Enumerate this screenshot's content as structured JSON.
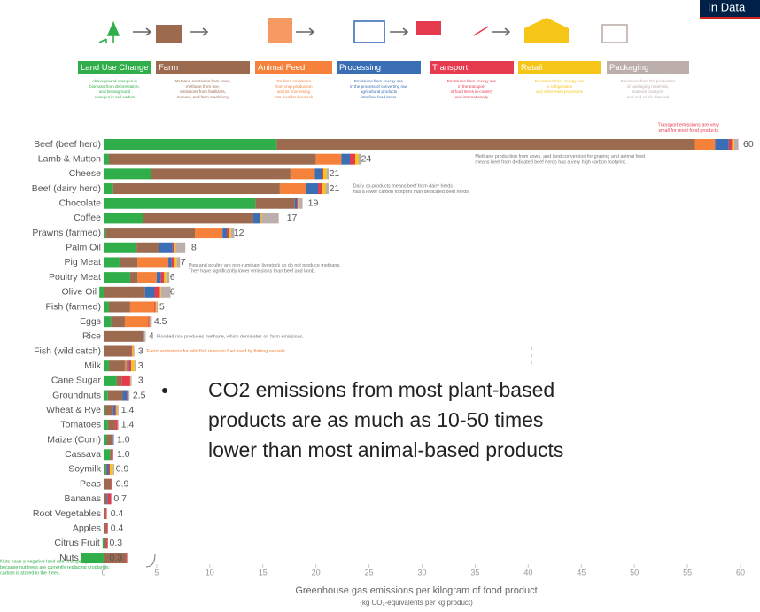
{
  "logo": "in Data",
  "chart_data": {
    "type": "stacked-bar-horizontal",
    "x_label": "Greenhouse gas emissions per kilogram of food product",
    "x_sublabel": "(kg CO₂-equivalents per kg product)",
    "xlim": [
      -2.5,
      61.5
    ],
    "xticks": [
      0,
      5,
      10,
      15,
      20,
      25,
      30,
      35,
      40,
      45,
      50,
      55,
      60
    ],
    "categories": [
      "Beef (beef herd)",
      "Lamb & Mutton",
      "Cheese",
      "Beef (dairy herd)",
      "Chocolate",
      "Coffee",
      "Prawns (farmed)",
      "Palm Oil",
      "Pig Meat",
      "Poultry Meat",
      "Olive Oil",
      "Fish (farmed)",
      "Eggs",
      "Rice",
      "Fish (wild catch)",
      "Milk",
      "Cane Sugar",
      "Groundnuts",
      "Wheat & Rye",
      "Tomatoes",
      "Maize (Corn)",
      "Cassava",
      "Soymilk",
      "Peas",
      "Bananas",
      "Root Vegetables",
      "Apples",
      "Citrus Fruit",
      "Nuts"
    ],
    "totals": [
      60,
      24,
      21,
      21,
      19,
      17,
      12,
      8,
      7,
      6,
      6,
      5,
      4.5,
      4,
      3,
      3,
      3,
      2.5,
      1.4,
      1.4,
      1.0,
      1.0,
      0.9,
      0.9,
      0.7,
      0.4,
      0.4,
      0.3,
      0.3
    ],
    "total_labels": [
      "60",
      "24",
      "21",
      "21",
      "19",
      "17",
      "12",
      "8",
      "7",
      "6",
      "6",
      "5",
      "4.5",
      "4",
      "3",
      "3",
      "3",
      "2.5",
      "1.4",
      "1.4",
      "1.0",
      "1.0",
      "0.9",
      "0.9",
      "0.7",
      "0.4",
      "0.4",
      "0.3",
      "0.3"
    ],
    "series": [
      {
        "name": "Land Use Change",
        "color": "#2fae4a",
        "description": [
          "Aboveground changes in",
          "biomass from deforestation,",
          "and belowground",
          "changes in soil carbon"
        ],
        "values": [
          16.3,
          0.5,
          4.5,
          0.9,
          14.3,
          3.7,
          0.2,
          3.1,
          1.5,
          2.5,
          -0.4,
          0.5,
          0.7,
          0,
          0,
          0.5,
          1.2,
          0.4,
          0.1,
          0.4,
          0.3,
          0.6,
          0.2,
          0,
          0,
          0,
          0,
          -0.1,
          -2.1
        ]
      },
      {
        "name": "Farm",
        "color": "#9c6a4f",
        "description": [
          "Methane emissions from cows,",
          "methane from rice,",
          "emissions from fertilizers,",
          "manure, and farm machinery"
        ],
        "values": [
          39.4,
          19.5,
          13.1,
          15.7,
          3.7,
          10.4,
          8.4,
          2.1,
          1.7,
          0.7,
          3.9,
          2.0,
          1.3,
          3.6,
          2.6,
          1.5,
          0.5,
          1.4,
          0.8,
          0.7,
          0.5,
          0.2,
          0.1,
          0.7,
          0.3,
          0.2,
          0.3,
          0.3,
          2.1
        ]
      },
      {
        "name": "Animal Feed",
        "color": "#f5813a",
        "description": [
          "On-farm emissions",
          "from crop production",
          "and its processing",
          "into feed for livestock"
        ],
        "values": [
          1.9,
          2.4,
          2.3,
          2.5,
          0,
          0,
          2.6,
          0,
          2.9,
          1.8,
          0,
          2.3,
          2.2,
          0,
          0,
          0.2,
          0,
          0,
          0,
          0,
          0,
          0,
          0,
          0,
          0,
          0,
          0,
          0,
          0
        ]
      },
      {
        "name": "Processing",
        "color": "#3a6fb6",
        "description": [
          "Emissions from energy use",
          "in the process of converting raw",
          "agricultural products",
          "into final food items"
        ],
        "values": [
          1.3,
          0.8,
          0.7,
          1.1,
          0.2,
          0.6,
          0.4,
          1.3,
          0.3,
          0.4,
          0.9,
          0,
          0,
          0.1,
          0,
          0.2,
          0,
          0.4,
          0.2,
          0,
          0.1,
          0,
          0.2,
          0,
          0.1,
          0,
          0,
          0,
          0
        ]
      },
      {
        "name": "Transport",
        "color": "#e63a4f",
        "description": [
          "Emissions from energy use",
          "in the transport",
          "of food items in-country",
          "and internationally"
        ],
        "values": [
          0.3,
          0.5,
          0.1,
          0.4,
          0.1,
          0.1,
          0.2,
          0.2,
          0.3,
          0.3,
          0.5,
          0.1,
          0.1,
          0.1,
          0.1,
          0.2,
          0.8,
          0.1,
          0.1,
          0.2,
          0,
          0.1,
          0.1,
          0.1,
          0.3,
          0.1,
          0.1,
          0.1,
          0.1
        ]
      },
      {
        "name": "Retail",
        "color": "#f5c518",
        "description": [
          "Emissions from energy use",
          "in refrigeration",
          "and other retail processes"
        ],
        "values": [
          0.2,
          0.3,
          0.3,
          0.3,
          0.04,
          0.1,
          0.2,
          0.1,
          0.2,
          0.2,
          0.1,
          0.1,
          0.04,
          0.06,
          0.1,
          0.3,
          0.04,
          0.04,
          0.1,
          0,
          0,
          0,
          0.3,
          0,
          0,
          0,
          0,
          0,
          0
        ]
      },
      {
        "name": "Packaging",
        "color": "#bcaeaa",
        "description": [
          "Emissions from the production",
          "of packaging materials,",
          "material transport",
          "and end-of-life disposal"
        ],
        "values": [
          0.4,
          0.3,
          0.2,
          0.3,
          0.4,
          1.6,
          0.3,
          0.9,
          0.3,
          0.3,
          0.9,
          0.1,
          0.2,
          0.1,
          0.1,
          0.1,
          0.1,
          0.1,
          0.1,
          0.1,
          0.1,
          0,
          0.1,
          0,
          0.1,
          0,
          0,
          0,
          0.1
        ]
      }
    ],
    "annotations": [
      {
        "row": 0,
        "color": "#e63a4f",
        "lines": [
          "Transport emissions are very",
          "small for most food products"
        ]
      },
      {
        "row": 1,
        "color": "#777777",
        "lines": [
          "Methane production from cows, and land conversion for grazing and animal feed",
          "means beef from dedicated beef herds has a very high carbon footprint."
        ]
      },
      {
        "row": 3,
        "color": "#777777",
        "lines": [
          "Dairy co-products means beef from dairy herds",
          "has a lower carbon footprint than dedicated beef herds."
        ]
      },
      {
        "row": 8,
        "color": "#777777",
        "lines": [
          "Pigs and poultry are non-ruminant livestock so do not produce methane.",
          "They have significantly lower emissions than beef and lamb."
        ]
      },
      {
        "row": 13,
        "color": "#777777",
        "lines": [
          "Flooded rice produces methane, which dominates on-farm emissions."
        ]
      },
      {
        "row": 14,
        "color": "#f5813a",
        "lines": [
          "'Farm' emissions for wild fish refers to fuel used by fishing vessels."
        ]
      },
      {
        "row": 28,
        "color": "#2fae4a",
        "lines": [
          "Nuts have a negative land use change figure",
          "because nut trees are currently replacing croplands;",
          "carbon is stored in the trees."
        ]
      }
    ]
  },
  "bullet": [
    "CO2 emissions from most plant-based",
    "products are as much as 10-50 times",
    "lower than most animal-based products"
  ]
}
